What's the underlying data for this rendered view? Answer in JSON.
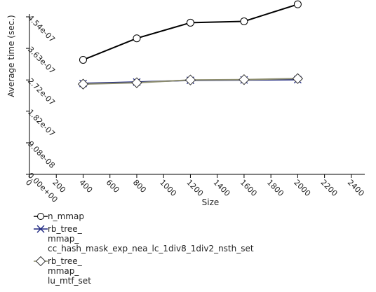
{
  "chart_data": {
    "type": "line",
    "title": "",
    "xlabel": "Size",
    "ylabel": "Average time (sec.)",
    "xlim": [
      0,
      2500
    ],
    "ylim": [
      0,
      4.54e-07
    ],
    "x_ticks": [
      "0",
      "200",
      "400",
      "600",
      "800",
      "1000",
      "1200",
      "1400",
      "1600",
      "1800",
      "2000",
      "2200",
      "2400"
    ],
    "y_ticks": [
      "0.00e+00",
      "9.08e-08",
      "1.82e-07",
      "2.72e-07",
      "3.63e-07",
      "4.54e-07"
    ],
    "x": [
      400,
      800,
      1200,
      1600,
      2000
    ],
    "grid": false,
    "legend_position": "bottom-left",
    "series": [
      {
        "name": "n_mmap",
        "marker": "circle",
        "color": "#000000",
        "values": [
          3.3e-07,
          3.92e-07,
          4.37e-07,
          4.41e-07,
          4.9e-07
        ]
      },
      {
        "name": "rb_tree_ mmap_ cc_hash_mask_exp_nea_lc_1div8_1div2_nsth_set",
        "marker": "x",
        "color": "#1a237e",
        "values": [
          2.62e-07,
          2.66e-07,
          2.71e-07,
          2.72e-07,
          2.73e-07
        ]
      },
      {
        "name": "rb_tree_ mmap_ lu_mtf_set",
        "marker": "diamond",
        "color": "#8d8d6e",
        "values": [
          2.6e-07,
          2.64e-07,
          2.72e-07,
          2.73e-07,
          2.76e-07
        ]
      }
    ]
  }
}
